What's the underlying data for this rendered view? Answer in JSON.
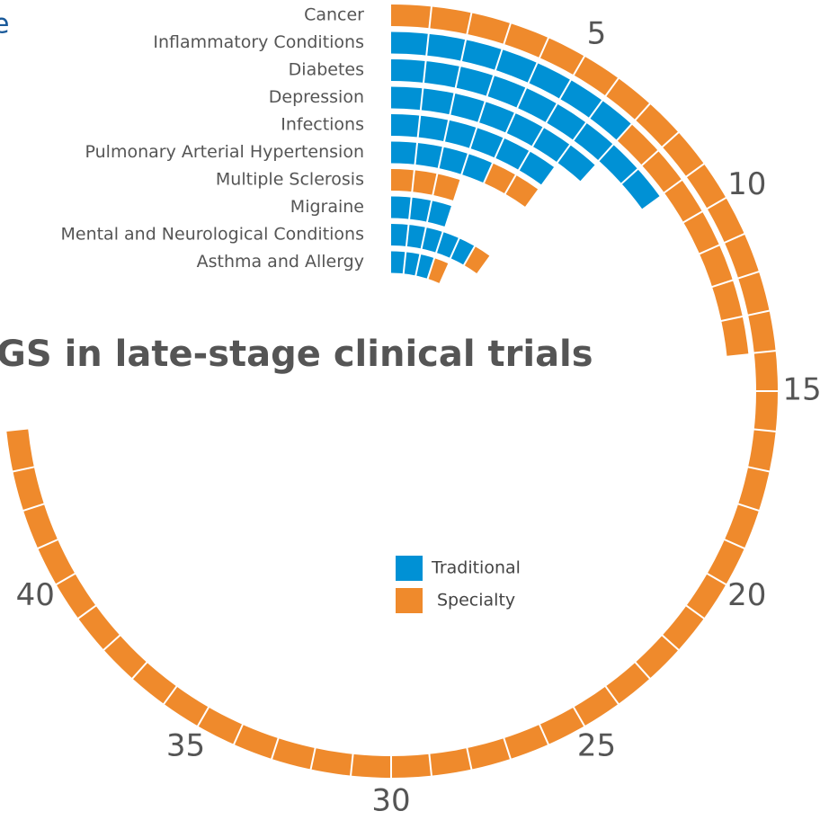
{
  "chart_data": {
    "type": "radial_bar",
    "title": "GS in late-stage clinical trials",
    "subtitle": "e",
    "categories": [
      "Cancer",
      "Inflammatory Conditions",
      "Diabetes",
      "Depression",
      "Infections",
      "Pulmonary Arterial Hypertension",
      "Multiple Sclerosis",
      "Migraine",
      "Mental and Neurological Conditions",
      "Asthma and Allergy"
    ],
    "series": [
      {
        "name": "Traditional",
        "color": "#0091d5",
        "values": [
          0,
          7,
          9,
          7,
          6,
          4,
          0,
          3,
          5,
          3
        ]
      },
      {
        "name": "Specialty",
        "color": "#ef8a2c",
        "values": [
          44,
          7,
          0,
          0,
          0,
          2,
          3,
          0,
          1,
          1
        ]
      }
    ],
    "xlim": [
      0,
      60
    ],
    "xticks": [
      5,
      10,
      15,
      20,
      25,
      30,
      35,
      40
    ]
  }
}
